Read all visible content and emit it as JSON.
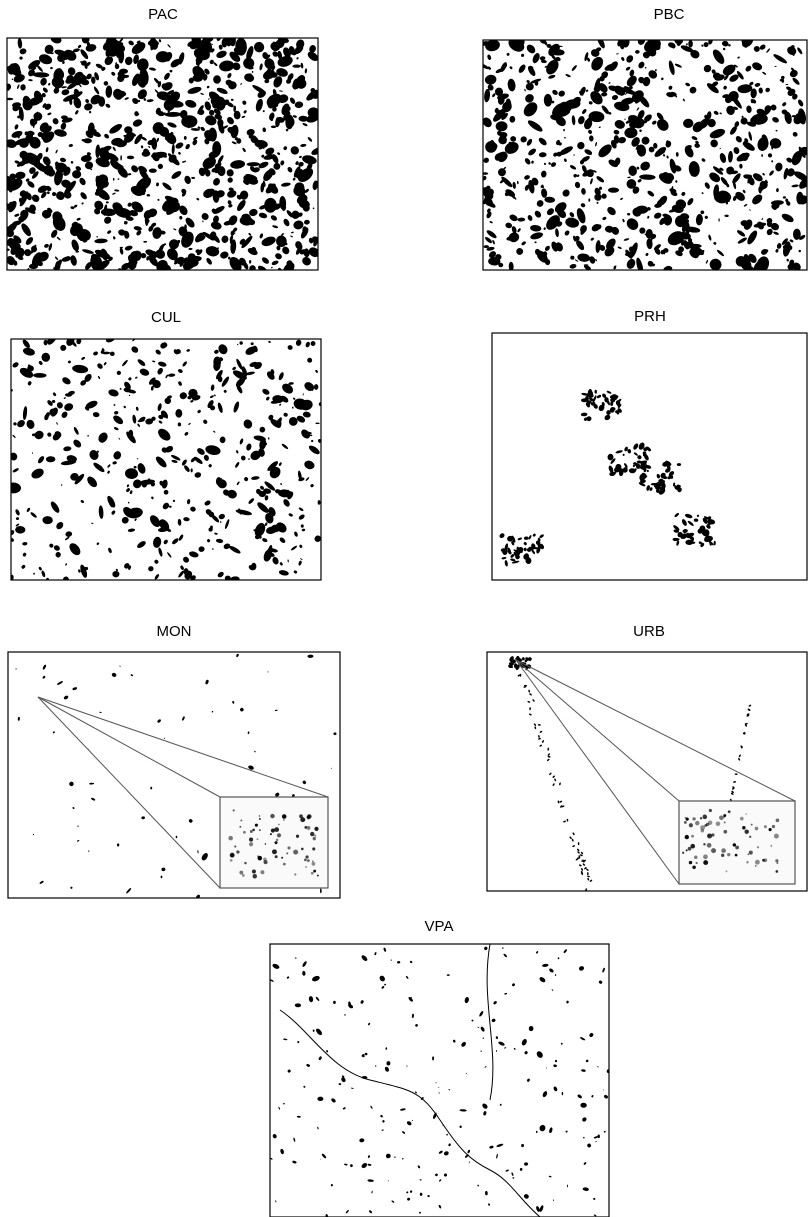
{
  "panels": [
    {
      "label": "PAC"
    },
    {
      "label": "PBC"
    },
    {
      "label": "CUL"
    },
    {
      "label": "PRH"
    },
    {
      "label": "MON"
    },
    {
      "label": "URB"
    },
    {
      "label": "VPA"
    }
  ]
}
